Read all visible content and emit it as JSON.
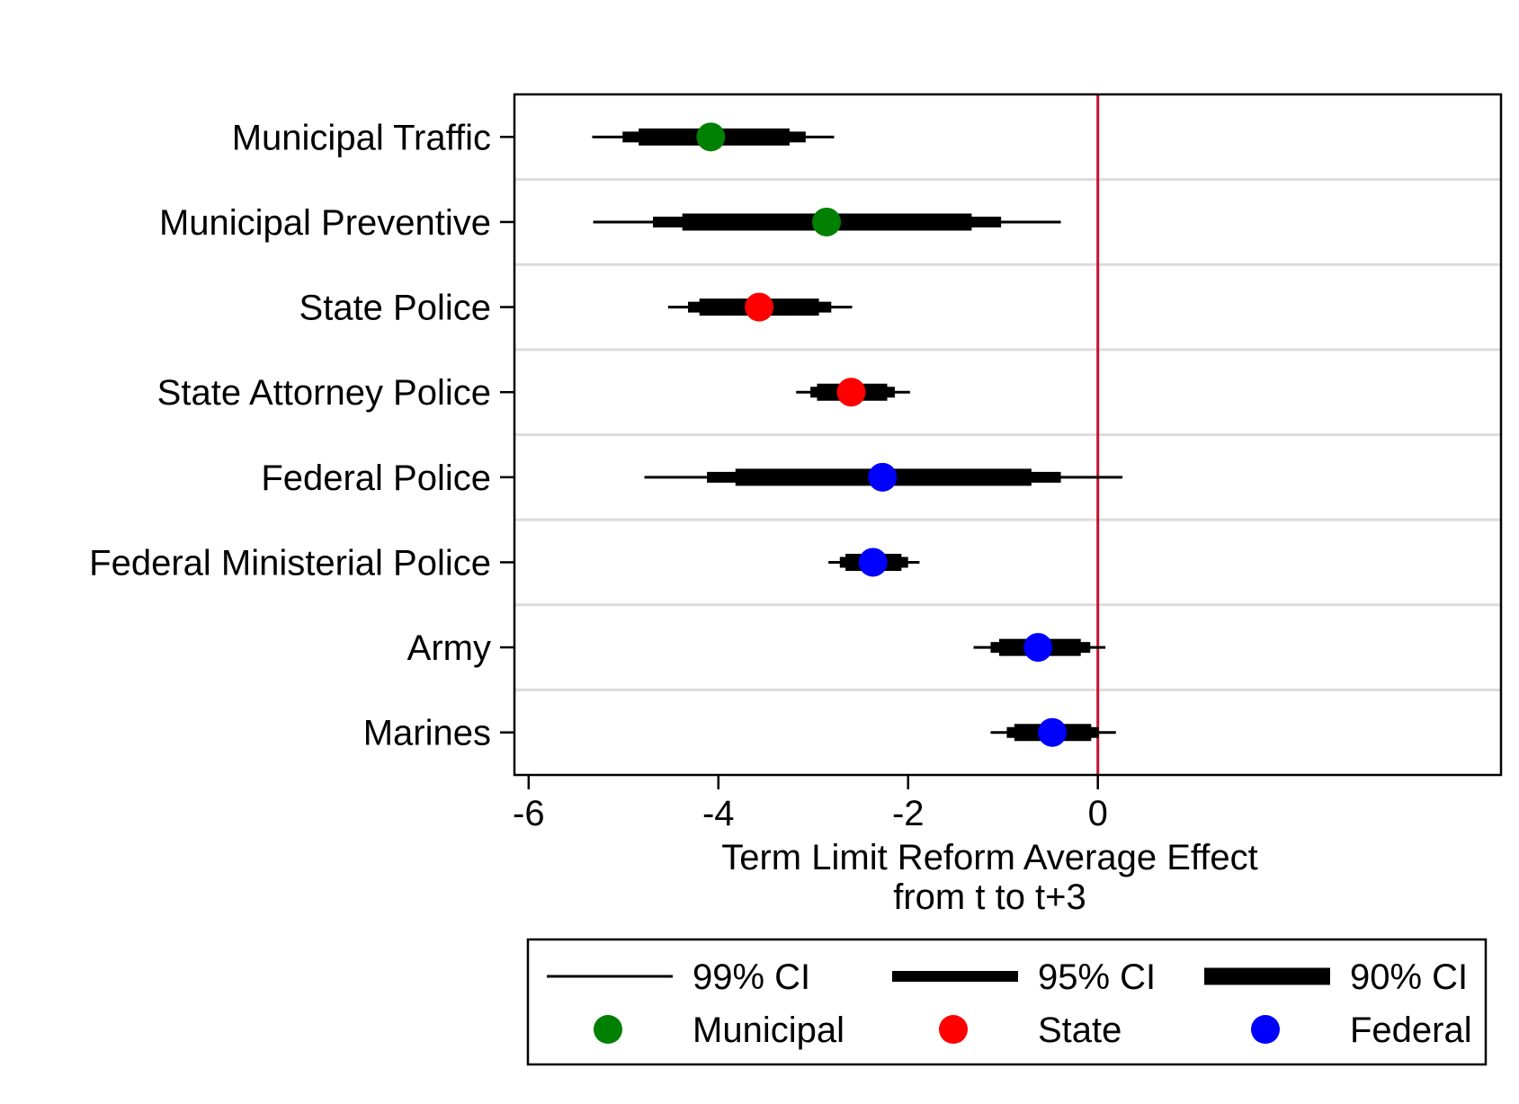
{
  "chart_data": {
    "type": "coefficient-plot",
    "title": "",
    "xlabel": [
      "Term Limit Reform Average Effect",
      "from t to t+3"
    ],
    "ylabel": "",
    "xlim": [
      -6.15,
      4.25
    ],
    "x_ticks": [
      -6,
      -4,
      -2,
      0
    ],
    "x_tick_labels": [
      "-6",
      "-4",
      "-2",
      "0"
    ],
    "reference_line": {
      "x": 0,
      "color": "#c8102e"
    },
    "grid": "horizontal",
    "groups": [
      {
        "name": "Municipal",
        "color": "#008000"
      },
      {
        "name": "State",
        "color": "#ff0000"
      },
      {
        "name": "Federal",
        "color": "#0000ff"
      }
    ],
    "categories": [
      "Municipal Traffic",
      "Municipal Preventive",
      "State Police",
      "State Attorney Police",
      "Federal Police",
      "Federal Ministerial Police",
      "Army",
      "Marines"
    ],
    "estimates": [
      {
        "category": "Municipal Traffic",
        "group": "Municipal",
        "point": -4.08,
        "ci99": [
          -5.33,
          -2.78
        ],
        "ci95": [
          -5.01,
          -3.08
        ],
        "ci90": [
          -4.84,
          -3.25
        ]
      },
      {
        "category": "Municipal Preventive",
        "group": "Municipal",
        "point": -2.86,
        "ci99": [
          -5.32,
          -0.39
        ],
        "ci95": [
          -4.69,
          -1.02
        ],
        "ci90": [
          -4.38,
          -1.33
        ]
      },
      {
        "category": "State Police",
        "group": "State",
        "point": -3.57,
        "ci99": [
          -4.53,
          -2.59
        ],
        "ci95": [
          -4.32,
          -2.81
        ],
        "ci90": [
          -4.2,
          -2.94
        ]
      },
      {
        "category": "State Attorney Police",
        "group": "State",
        "point": -2.6,
        "ci99": [
          -3.18,
          -1.98
        ],
        "ci95": [
          -3.03,
          -2.14
        ],
        "ci90": [
          -2.96,
          -2.22
        ]
      },
      {
        "category": "Federal Police",
        "group": "Federal",
        "point": -2.27,
        "ci99": [
          -4.78,
          0.26
        ],
        "ci95": [
          -4.12,
          -0.39
        ],
        "ci90": [
          -3.82,
          -0.7
        ]
      },
      {
        "category": "Federal Ministerial Police",
        "group": "Federal",
        "point": -2.37,
        "ci99": [
          -2.84,
          -1.88
        ],
        "ci95": [
          -2.72,
          -2.0
        ],
        "ci90": [
          -2.66,
          -2.07
        ]
      },
      {
        "category": "Army",
        "group": "Federal",
        "point": -0.63,
        "ci99": [
          -1.31,
          0.08
        ],
        "ci95": [
          -1.13,
          -0.08
        ],
        "ci90": [
          -1.04,
          -0.18
        ]
      },
      {
        "category": "Marines",
        "group": "Federal",
        "point": -0.48,
        "ci99": [
          -1.13,
          0.19
        ],
        "ci95": [
          -0.96,
          0.01
        ],
        "ci90": [
          -0.88,
          -0.07
        ]
      }
    ],
    "legend": {
      "placement": "bottom",
      "line_items": [
        "99% CI",
        "95% CI",
        "90% CI"
      ],
      "marker_items": [
        "Municipal",
        "State",
        "Federal"
      ]
    }
  }
}
